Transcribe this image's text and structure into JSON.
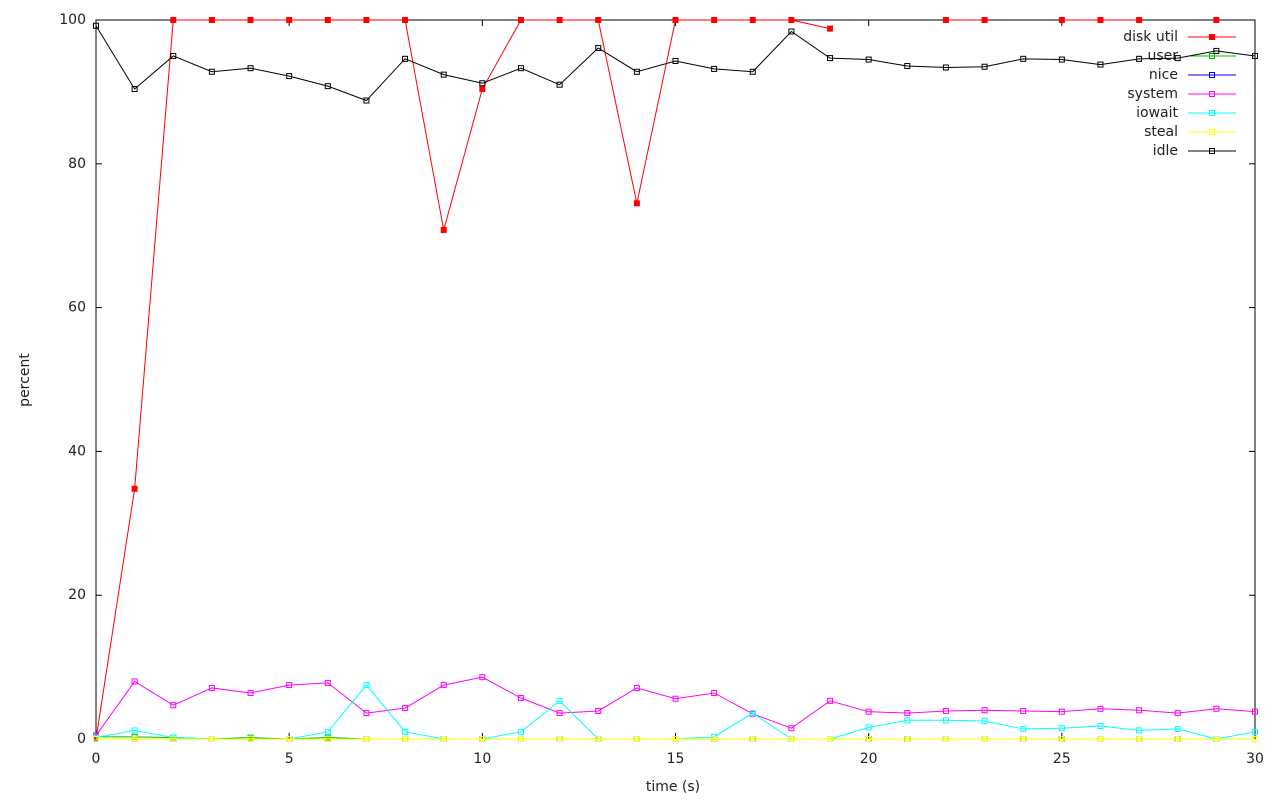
{
  "chart_data": {
    "type": "line",
    "x_label": "time (s)",
    "y_label": "percent",
    "x": [
      0,
      1,
      2,
      3,
      4,
      5,
      6,
      7,
      8,
      9,
      10,
      11,
      12,
      13,
      14,
      15,
      16,
      17,
      18,
      19,
      20,
      21,
      22,
      23,
      24,
      25,
      26,
      27,
      28,
      29,
      30
    ],
    "xlim": [
      0,
      30
    ],
    "xticks": [
      0,
      5,
      10,
      15,
      20,
      25,
      30
    ],
    "ylim": [
      0,
      100
    ],
    "yticks": [
      0,
      20,
      40,
      60,
      80,
      100
    ],
    "grid": false,
    "legend": "top-right",
    "series": [
      {
        "name": "disk util",
        "color": "#ff0000",
        "marker": "filled-square",
        "values": [
          0,
          34.8,
          100,
          100,
          100,
          100,
          100,
          100,
          100,
          70.8,
          90.4,
          100,
          100,
          100,
          74.5,
          100,
          100,
          100,
          100,
          98.8,
          null,
          null,
          100,
          100,
          null,
          100,
          100,
          100,
          null,
          100,
          null
        ]
      },
      {
        "name": "user",
        "color": "#00c000",
        "marker": "square",
        "values": [
          0.3,
          0.3,
          0.2,
          0,
          0.2,
          0,
          0.2,
          0,
          0,
          0,
          0,
          0,
          0,
          0,
          0,
          0,
          0,
          0,
          0,
          0,
          0,
          0,
          0,
          0,
          0,
          0,
          0,
          0,
          0,
          0,
          0
        ]
      },
      {
        "name": "nice",
        "color": "#0000ff",
        "marker": "square",
        "values": [
          0,
          0,
          0,
          0,
          0,
          0,
          0,
          0,
          0,
          0,
          0,
          0,
          0,
          0,
          0,
          0,
          0,
          0,
          0,
          0,
          0,
          0,
          0,
          0,
          0,
          0,
          0,
          0,
          0,
          0,
          0
        ]
      },
      {
        "name": "system",
        "color": "#ff00ff",
        "marker": "square",
        "values": [
          0.5,
          8,
          4.7,
          7.1,
          6.4,
          7.5,
          7.8,
          3.6,
          4.3,
          7.5,
          8.6,
          5.7,
          3.6,
          3.9,
          7.1,
          5.6,
          6.4,
          3.5,
          1.5,
          5.3,
          3.8,
          3.6,
          3.9,
          4.0,
          3.9,
          3.8,
          4.2,
          4.0,
          3.6,
          4.2,
          3.8
        ]
      },
      {
        "name": "iowait",
        "color": "#00ffff",
        "marker": "square",
        "values": [
          0.2,
          1.2,
          0.2,
          0,
          0,
          0,
          1.0,
          7.5,
          1.0,
          0,
          0,
          1.0,
          5.3,
          0,
          0,
          0,
          0.3,
          3.6,
          0,
          0,
          1.6,
          2.6,
          2.6,
          2.5,
          1.4,
          1.5,
          1.8,
          1.2,
          1.4,
          0,
          1.0
        ]
      },
      {
        "name": "steal",
        "color": "#ffff00",
        "marker": "square",
        "values": [
          0,
          0,
          0,
          0,
          0,
          0,
          0,
          0,
          0,
          0,
          0,
          0,
          0,
          0,
          0,
          0,
          0,
          0,
          0,
          0,
          0,
          0,
          0,
          0,
          0,
          0,
          0,
          0,
          0,
          0,
          0
        ]
      },
      {
        "name": "idle",
        "color": "#000000",
        "marker": "square",
        "values": [
          99.2,
          90.4,
          95,
          92.8,
          93.3,
          92.2,
          90.8,
          88.8,
          94.6,
          92.4,
          91.2,
          93.3,
          91,
          96.1,
          92.8,
          94.3,
          93.2,
          92.8,
          98.4,
          94.7,
          94.5,
          93.6,
          93.4,
          93.5,
          94.6,
          94.5,
          93.8,
          94.6,
          94.7,
          95.7,
          95
        ]
      }
    ]
  }
}
